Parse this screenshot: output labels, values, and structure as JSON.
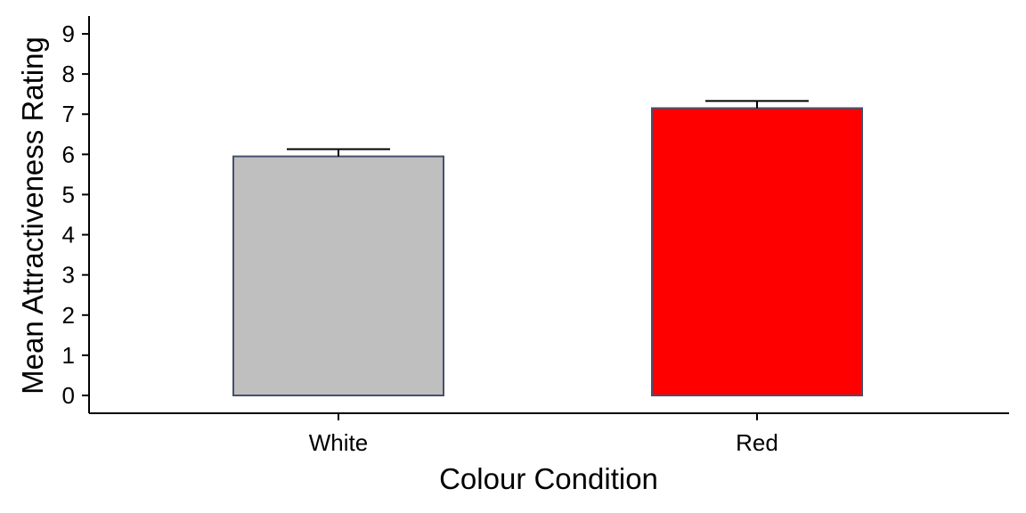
{
  "chart_data": {
    "type": "bar",
    "categories": [
      "White",
      "Red"
    ],
    "values": [
      5.95,
      7.15
    ],
    "errors": [
      0.18,
      0.18
    ],
    "colors": [
      "#bfbfbf",
      "#ff0000"
    ],
    "edge_color": "#44506e",
    "xlabel": "Colour Condition",
    "ylabel": "Mean Attractiveness Rating",
    "ylim": [
      0,
      9
    ],
    "yticks": [
      0,
      1,
      2,
      3,
      4,
      5,
      6,
      7,
      8,
      9
    ],
    "grid": false,
    "legend": "none"
  }
}
